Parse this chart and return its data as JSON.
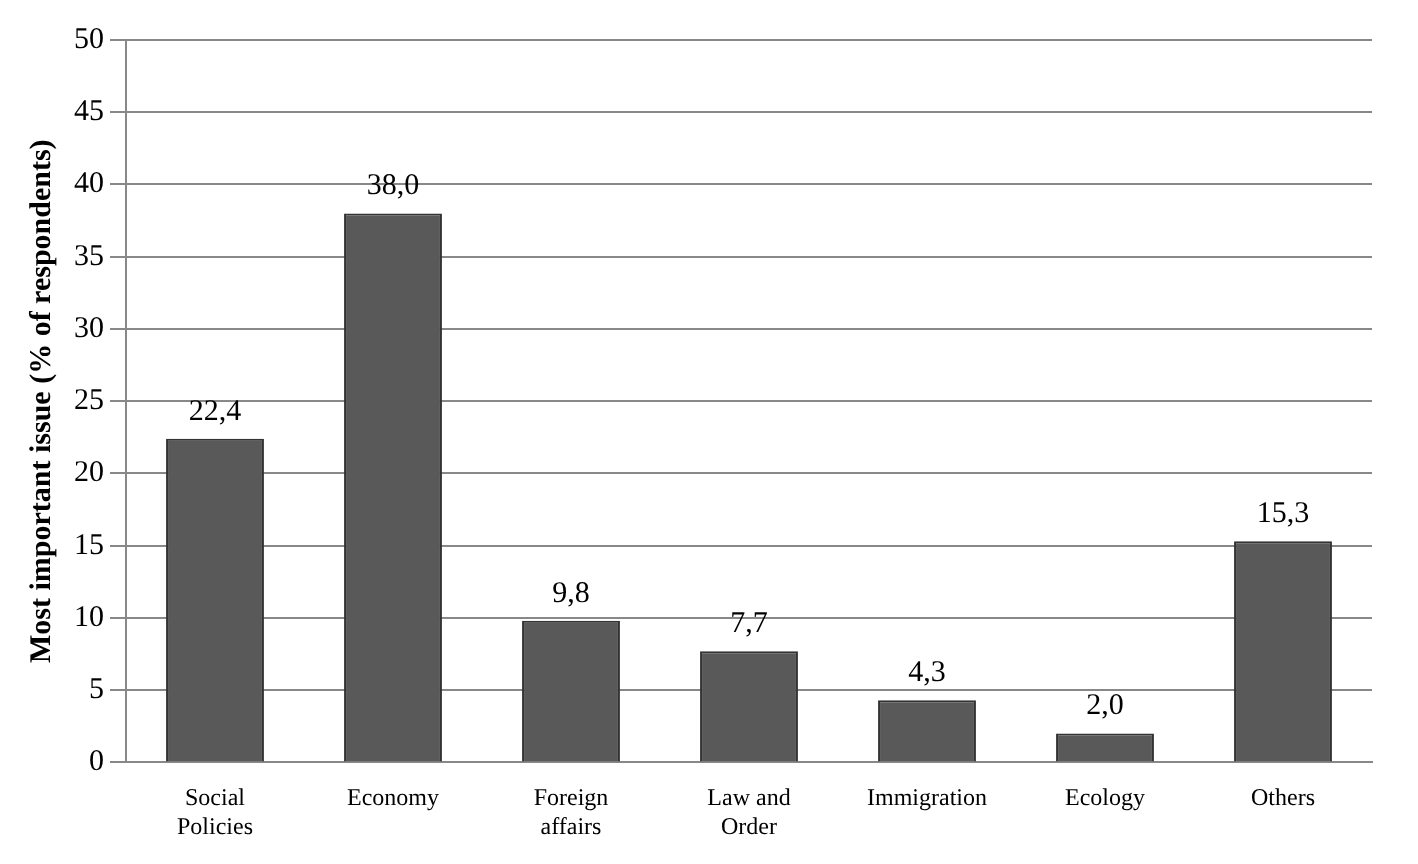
{
  "chart_data": {
    "type": "bar",
    "ylabel": "Most important issue (% of respondents)",
    "categories": [
      "Social Policies",
      "Economy",
      "Foreign affairs",
      "Law and Order",
      "Immigration",
      "Ecology",
      "Others"
    ],
    "values": [
      22.4,
      38.0,
      9.8,
      7.7,
      4.3,
      2.0,
      15.3
    ],
    "value_labels": [
      "22,4",
      "38,0",
      "9,8",
      "7,7",
      "4,3",
      "2,0",
      "15,3"
    ],
    "color": "#595959",
    "ylim": [
      0,
      50
    ],
    "yticks": [
      0,
      5,
      10,
      15,
      20,
      25,
      30,
      35,
      40,
      45,
      50
    ],
    "grid": "y",
    "legend": false
  }
}
